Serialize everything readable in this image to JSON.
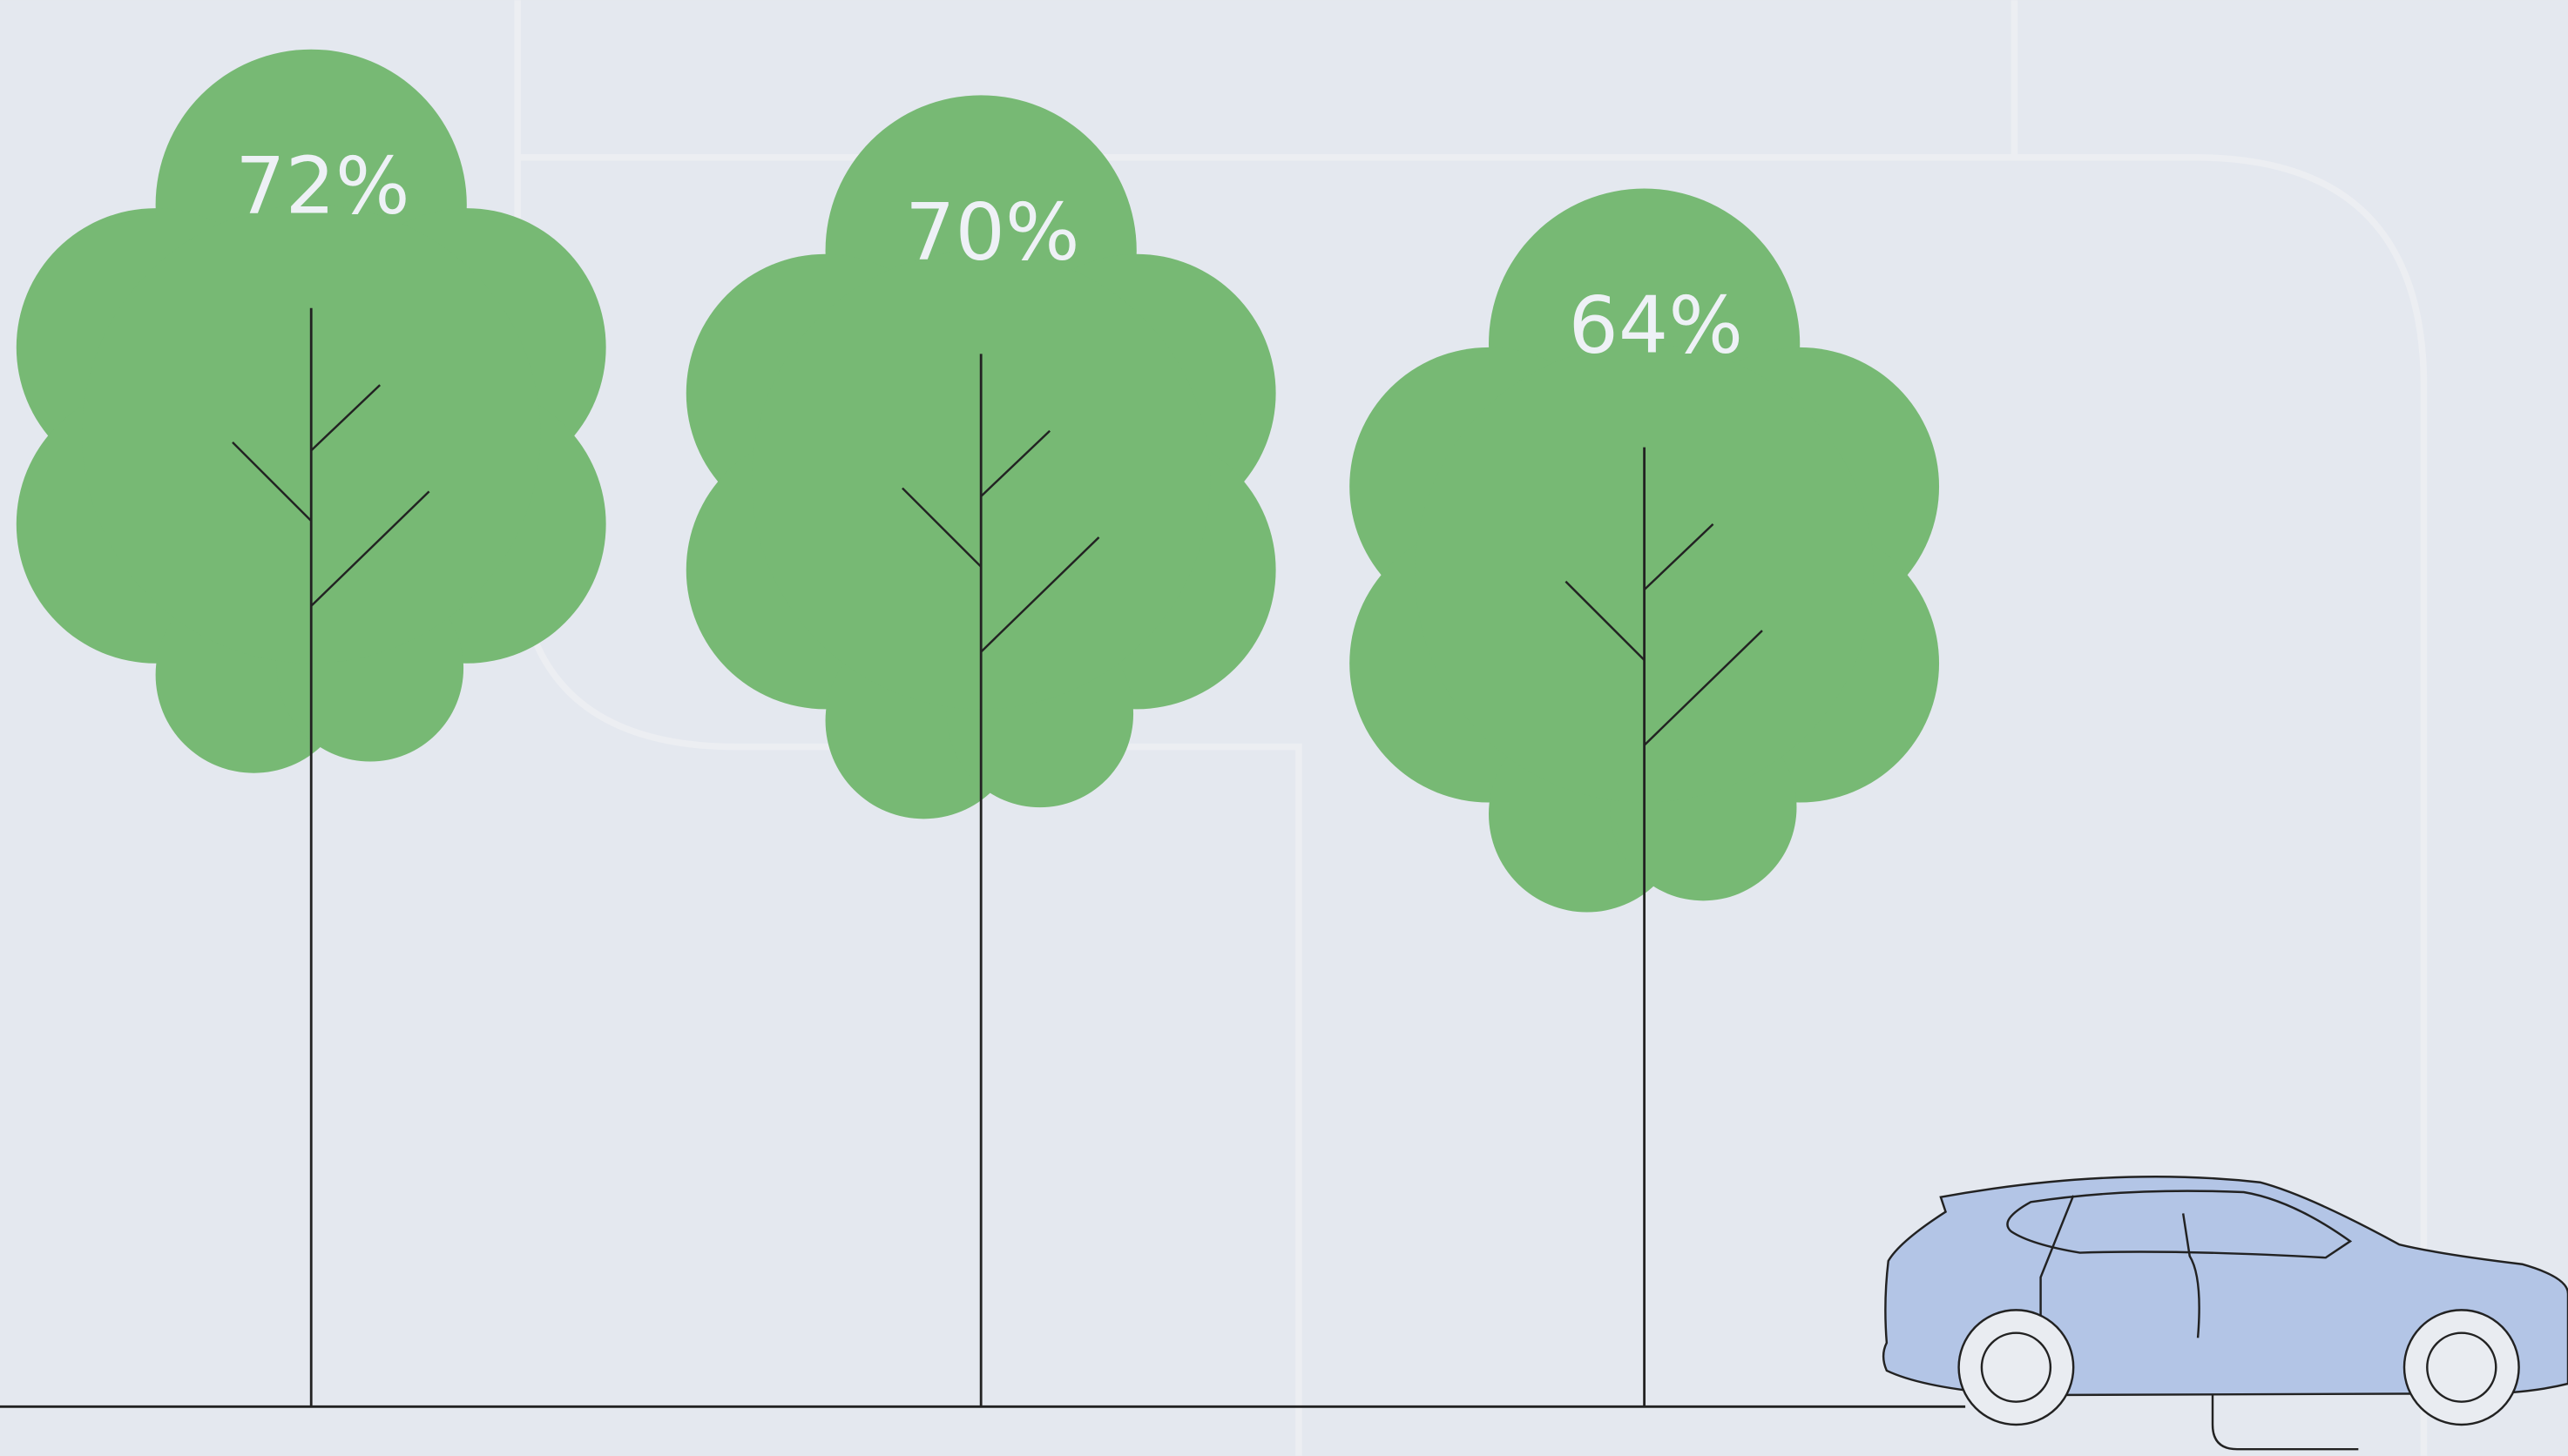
{
  "trees": [
    {
      "label": "72%"
    },
    {
      "label": "70%"
    },
    {
      "label": "64%"
    }
  ]
}
